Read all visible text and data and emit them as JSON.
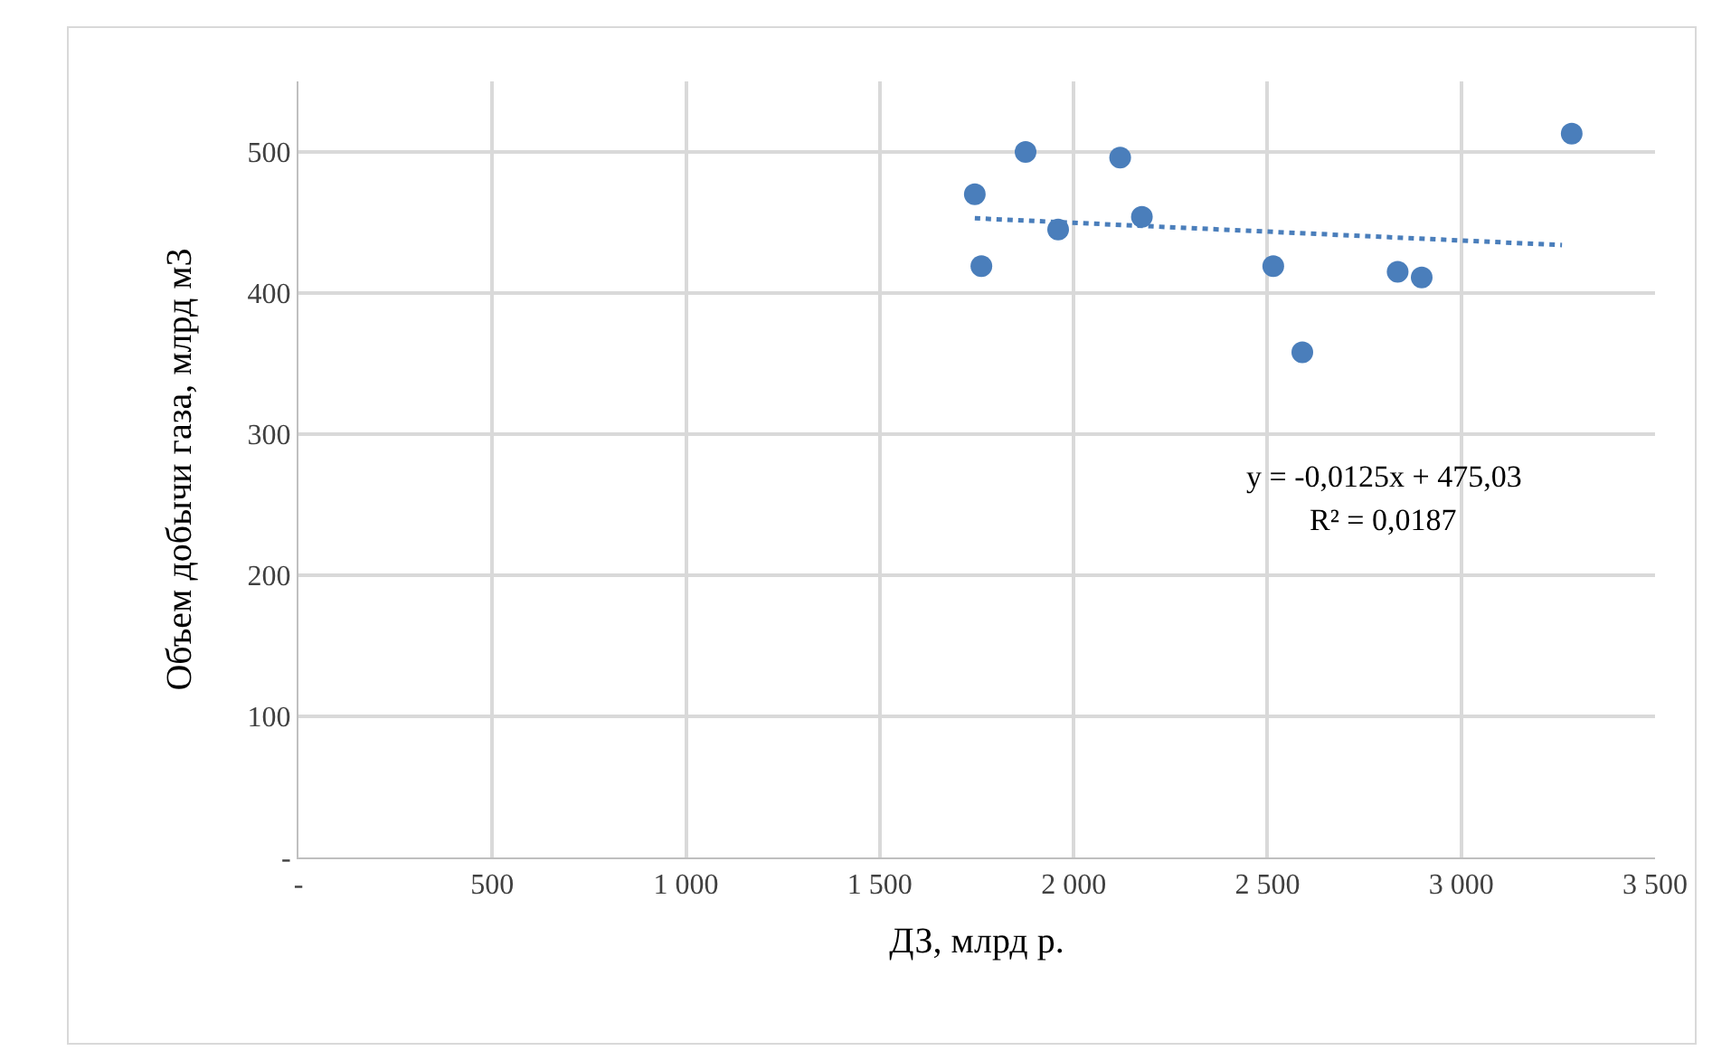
{
  "chart_data": {
    "type": "scatter",
    "xlabel": "ДЗ, млрд р.",
    "ylabel": "Объем добычи газа, млрд м3",
    "series": [
      {
        "color": "#4a7ebb",
        "marker": "circle",
        "x": [
          1745,
          1762,
          1876,
          1960,
          2120,
          2176,
          2515,
          2590,
          2836,
          2898,
          3285
        ],
        "values": [
          470,
          419,
          500,
          445,
          496,
          454,
          419,
          358,
          415,
          411,
          513
        ]
      },
      {
        "type": "line",
        "color": "#4a7ebb",
        "line_style": "dotted",
        "marker": "none",
        "x": [
          1745,
          3260
        ],
        "values": [
          453,
          434
        ]
      }
    ],
    "annotations": [
      "y = -0,0125x + 475,03",
      "R² = 0,0187"
    ],
    "xlim": [
      0,
      3500
    ],
    "ylim": [
      0,
      550
    ],
    "xticks": [
      {
        "value": 0,
        "label": "-"
      },
      500,
      {
        "value": 1000,
        "label": "1 000"
      },
      {
        "value": 1500,
        "label": "1 500"
      },
      {
        "value": 2000,
        "label": "2 000"
      },
      {
        "value": 2500,
        "label": "2 500"
      },
      {
        "value": 3000,
        "label": "3 000"
      },
      {
        "value": 3500,
        "label": "3 500"
      }
    ],
    "yticks": [
      {
        "value": 0,
        "label": "-"
      },
      100,
      200,
      300,
      400,
      500
    ],
    "grid": true
  }
}
